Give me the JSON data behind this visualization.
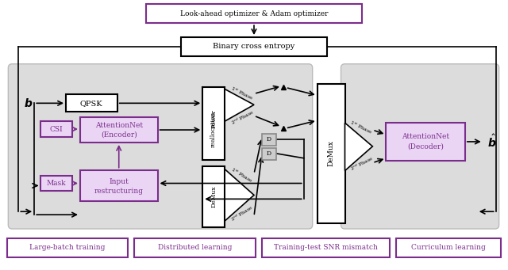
{
  "purple": "#7B2D8B",
  "purple_fill": "#EAD5F5",
  "bg_gray": "#DCDCDC",
  "white": "#FFFFFF",
  "black": "#000000",
  "bottom_labels": [
    "Large-batch training",
    "Distributed learning",
    "Training-test SNR mismatch",
    "Curriculum learning"
  ]
}
